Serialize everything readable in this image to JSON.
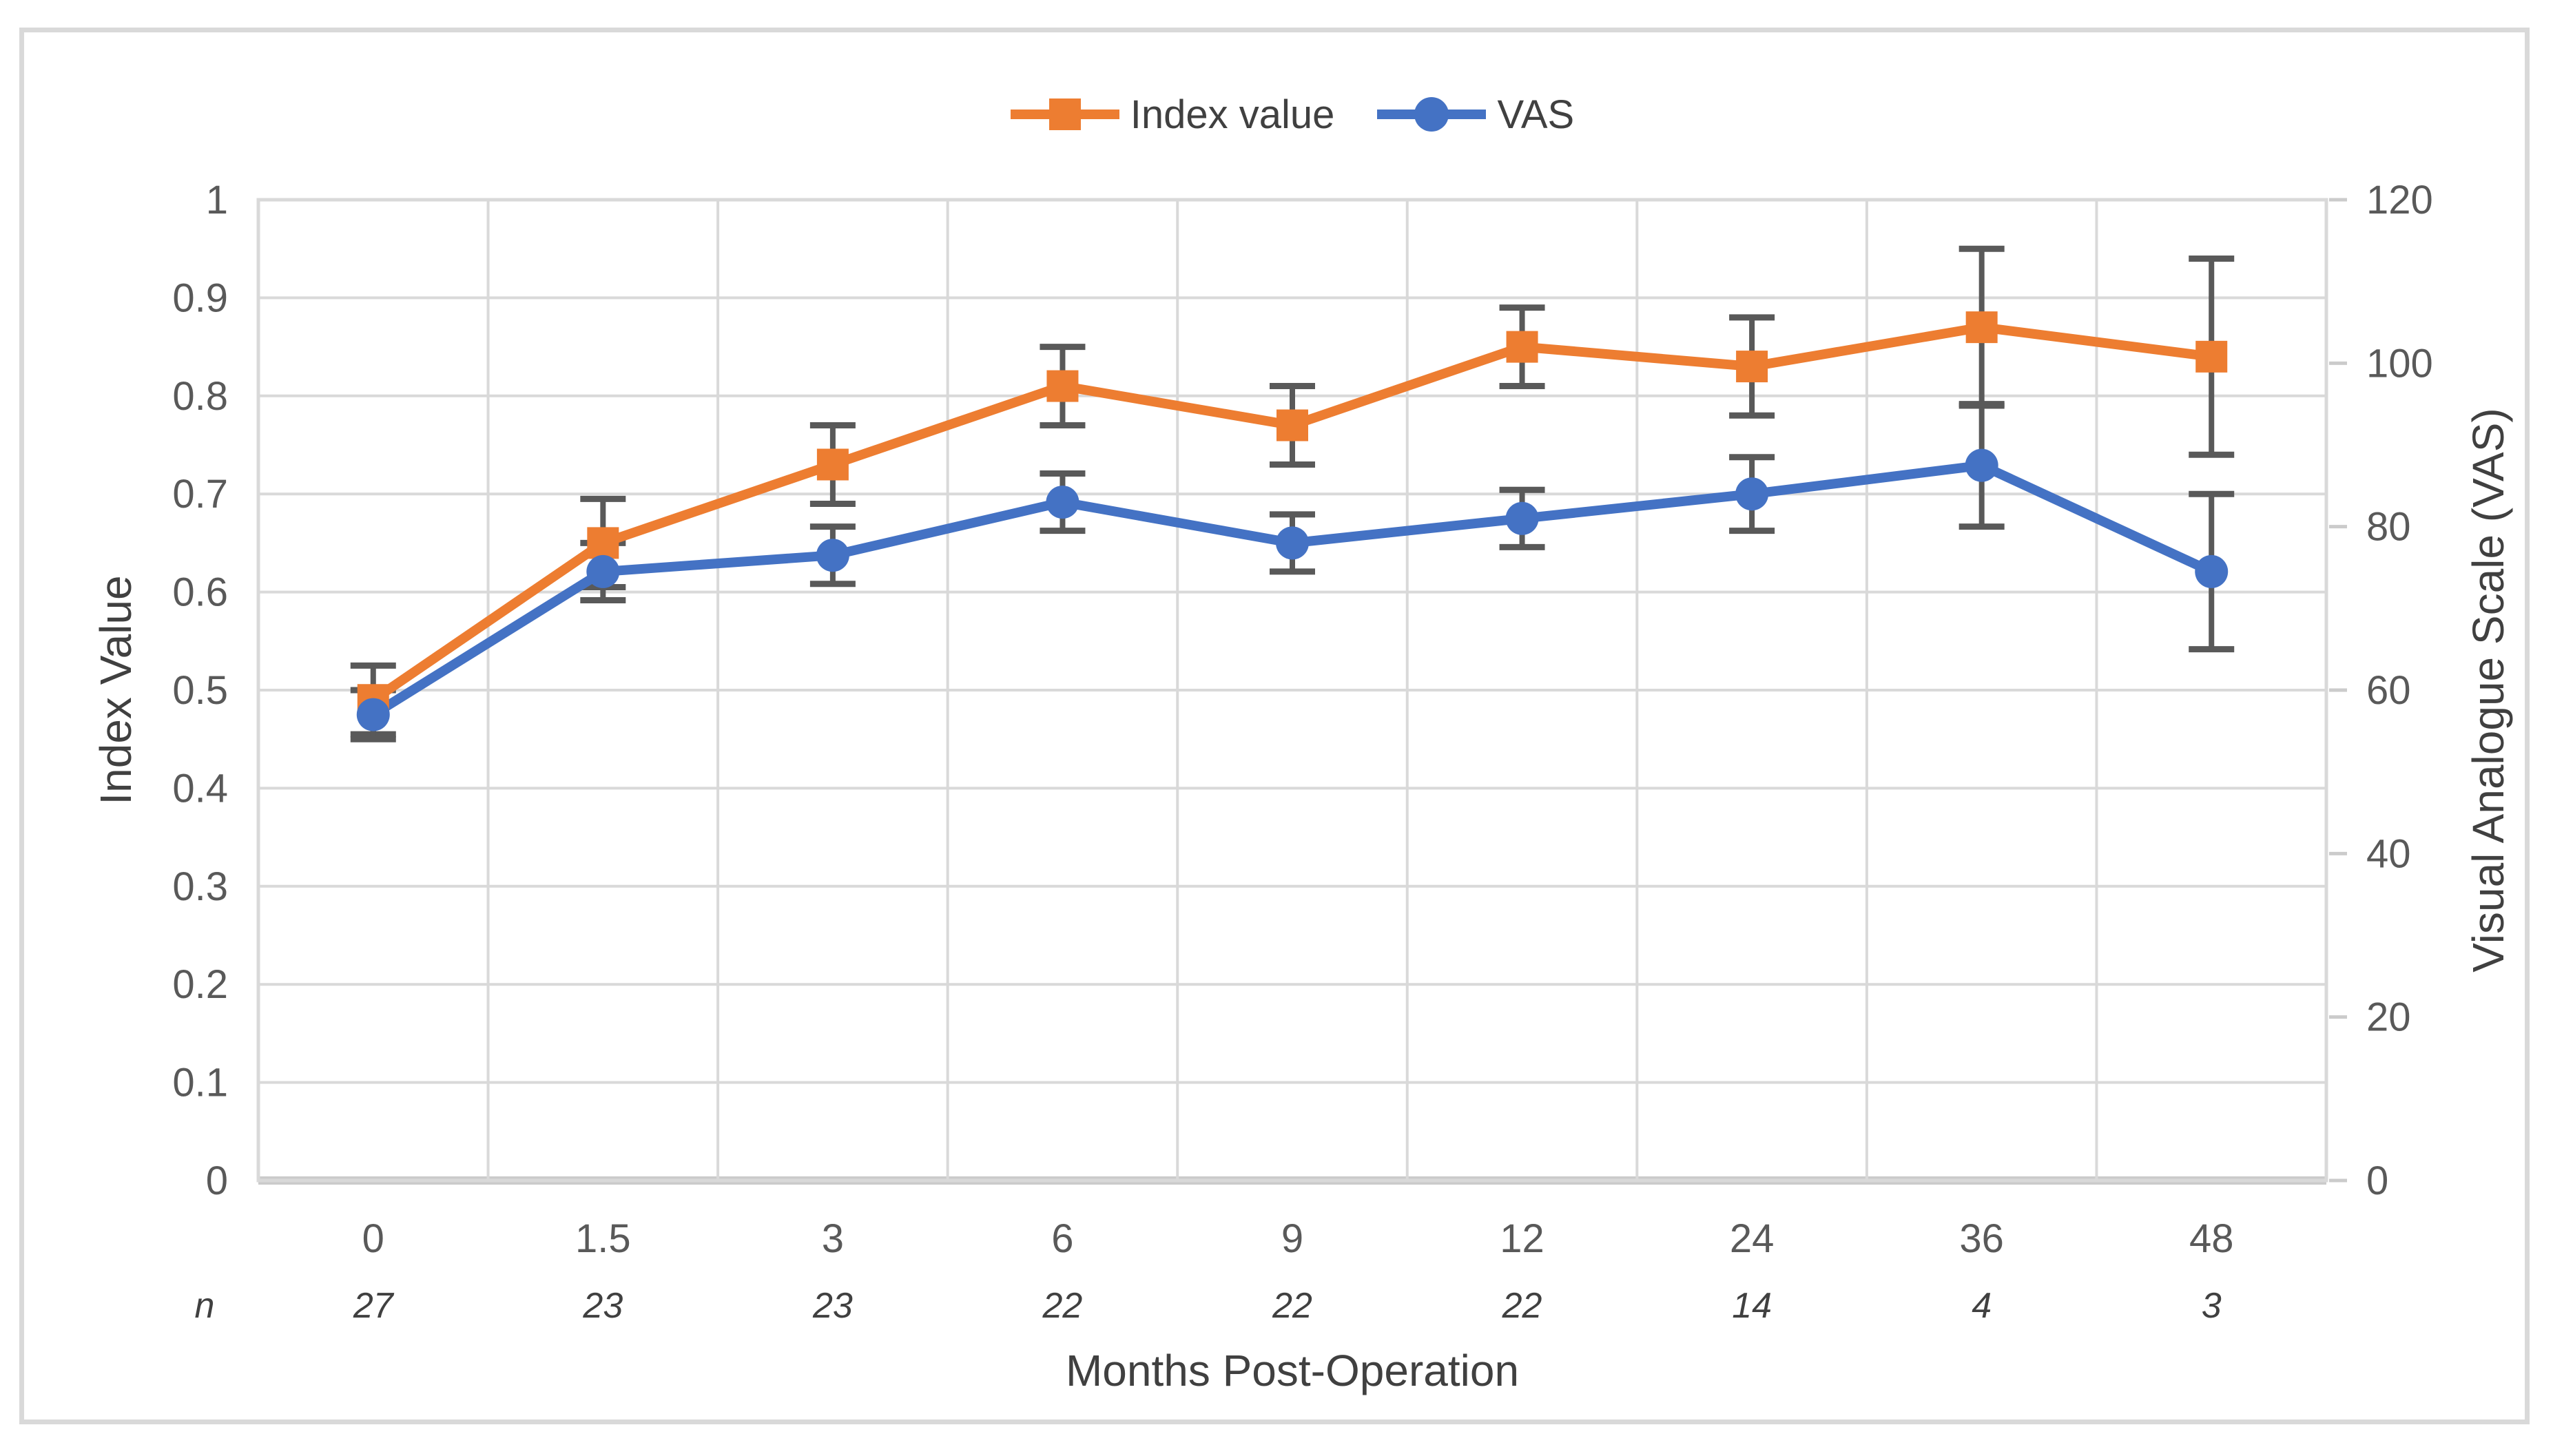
{
  "legend": {
    "items": [
      {
        "label": "Index value",
        "color": "#ED7D31",
        "marker": "square"
      },
      {
        "label": "VAS",
        "color": "#4472C4",
        "marker": "circle"
      }
    ]
  },
  "chart_data": {
    "type": "line",
    "categories": [
      "0",
      "1.5",
      "3",
      "6",
      "9",
      "12",
      "24",
      "36",
      "48"
    ],
    "x_axis_title": "Months Post-Operation",
    "n_row": {
      "header": "n",
      "values": [
        "27",
        "23",
        "23",
        "22",
        "22",
        "22",
        "14",
        "4",
        "3"
      ]
    },
    "y_left": {
      "title": "Index Value",
      "min": 0,
      "max": 1,
      "tick_labels": [
        "0",
        "0.1",
        "0.2",
        "0.3",
        "0.4",
        "0.5",
        "0.6",
        "0.7",
        "0.8",
        "0.9",
        "1"
      ]
    },
    "y_right": {
      "title": "Visual Analogue Scale (VAS)",
      "min": 0,
      "max": 120,
      "tick_labels": [
        "0",
        "20",
        "40",
        "60",
        "80",
        "100",
        "120"
      ]
    },
    "series": [
      {
        "name": "Index value",
        "axis": "left",
        "marker": "square",
        "color": "#ED7D31",
        "values": [
          0.49,
          0.65,
          0.73,
          0.81,
          0.77,
          0.85,
          0.83,
          0.87,
          0.84
        ],
        "error": [
          0.035,
          0.045,
          0.04,
          0.04,
          0.04,
          0.04,
          0.05,
          0.08,
          0.1
        ]
      },
      {
        "name": "VAS",
        "axis": "right",
        "marker": "circle",
        "color": "#4472C4",
        "values": [
          57,
          74.5,
          76.5,
          83,
          78,
          81,
          84,
          87.5,
          74.5
        ],
        "error": [
          3,
          3.5,
          3.5,
          3.5,
          3.5,
          3.5,
          4.5,
          7.5,
          9.5
        ]
      }
    ],
    "grid": true,
    "legend_position": "top",
    "colors": {
      "gridline": "#d9d9d9",
      "axis_line": "#cbcbcb",
      "error_bar": "#595959",
      "tick_text": "#595959",
      "title_text": "#404040",
      "figure_border": "#d9d9d9",
      "background": "#ffffff"
    }
  }
}
